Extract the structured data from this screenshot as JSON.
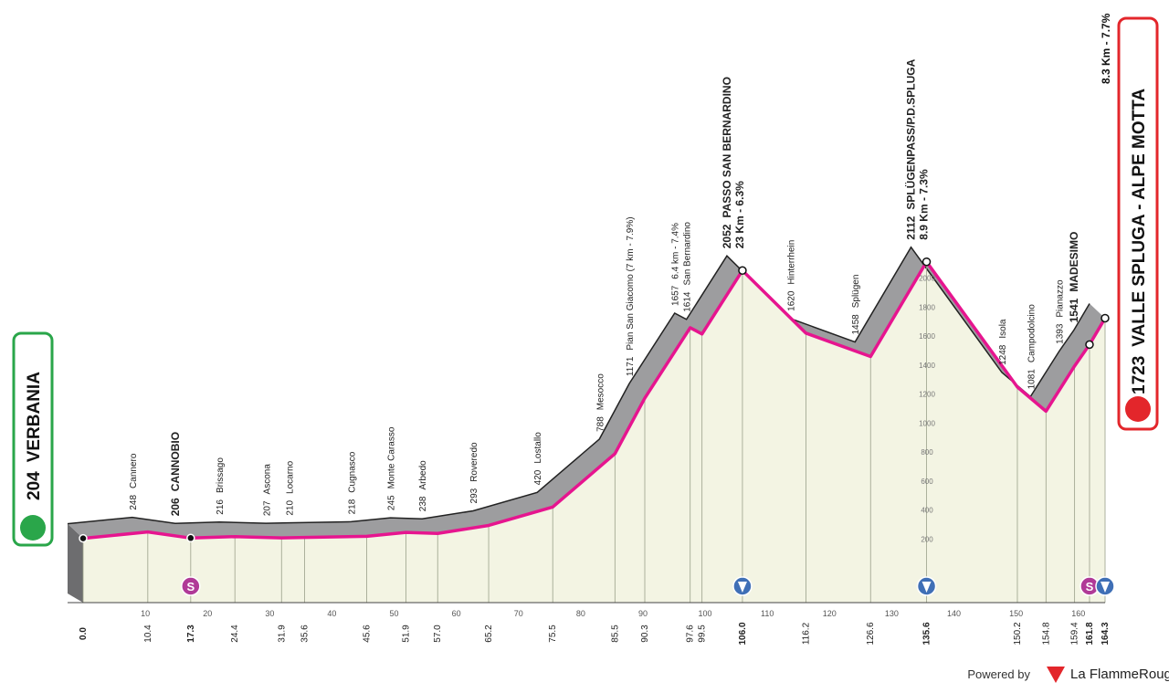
{
  "chart_data": {
    "type": "profile",
    "x": [
      0.0,
      10.4,
      17.3,
      24.4,
      31.9,
      35.6,
      45.6,
      51.9,
      57.0,
      65.2,
      75.5,
      85.5,
      90.3,
      97.6,
      99.5,
      106.0,
      116.2,
      126.6,
      135.6,
      150.2,
      154.8,
      159.4,
      161.8,
      164.3
    ],
    "x_labels": [
      "0.0",
      "10.4",
      "17.3",
      "24.4",
      "31.9",
      "35.6",
      "45.6",
      "51.9",
      "57.0",
      "65.2",
      "75.5",
      "85.5",
      "90.3",
      "97.6",
      "99.5",
      "106.0",
      "116.2",
      "126.6",
      "135.6",
      "150.2",
      "154.8",
      "159.4",
      "161.8",
      "164.3"
    ],
    "values": [
      204,
      248,
      206,
      216,
      207,
      210,
      218,
      245,
      238,
      293,
      420,
      788,
      1171,
      1657,
      1614,
      2052,
      1620,
      1458,
      2112,
      1248,
      1081,
      1393,
      1541,
      1723
    ],
    "names": [
      "VERBANIA",
      "Cannero",
      "CANNOBIO",
      "Brissago",
      "Ascona",
      "Locarno",
      "Cugnasco",
      "Monte Carasso",
      "Arbedo",
      "Roveredo",
      "Lostallo",
      "Mesocco",
      "Pian San Giacomo (7 km - 7.9%)",
      "6.4 km - 7.4%",
      "San Bernardino",
      "PASSO SAN BERNARDINO",
      "Hinterrhein",
      "Splügen",
      "SPLÜGENPASS/P.D.SPLUGA",
      "Isola",
      "Campodolcino",
      "Pianazzo",
      "MADESIMO",
      "VALLE SPLUGA - ALPE MOTTA"
    ],
    "climbs": [
      null,
      null,
      null,
      null,
      null,
      null,
      null,
      null,
      null,
      null,
      null,
      null,
      null,
      null,
      null,
      "23 Km - 6.3%",
      null,
      null,
      "8.9 Km - 7.3%",
      null,
      null,
      null,
      null,
      "8.3 Km - 7.7%"
    ],
    "major": [
      true,
      false,
      true,
      false,
      false,
      false,
      false,
      false,
      false,
      false,
      false,
      false,
      false,
      false,
      false,
      true,
      false,
      false,
      true,
      false,
      false,
      false,
      true,
      true
    ],
    "icons": [
      null,
      null,
      "sprint",
      null,
      null,
      null,
      null,
      null,
      null,
      null,
      null,
      null,
      null,
      null,
      null,
      "kom",
      null,
      null,
      "kom",
      null,
      null,
      null,
      "sprint",
      "kom"
    ],
    "sprint_label": "S",
    "xlim": [
      0,
      164.3
    ],
    "xticks": [
      10,
      20,
      30,
      40,
      50,
      60,
      70,
      80,
      90,
      100,
      110,
      120,
      130,
      140,
      150,
      160
    ],
    "ylim": [
      0,
      2400
    ],
    "yticks": [
      200,
      400,
      600,
      800,
      1000,
      1200,
      1400,
      1600,
      1800,
      2000
    ],
    "line_color": "#e6158f",
    "band_color": "#9d9d9f",
    "fill_color": "#f3f4e3",
    "credit": "Powered by",
    "brand": "La FlammeRouge"
  }
}
